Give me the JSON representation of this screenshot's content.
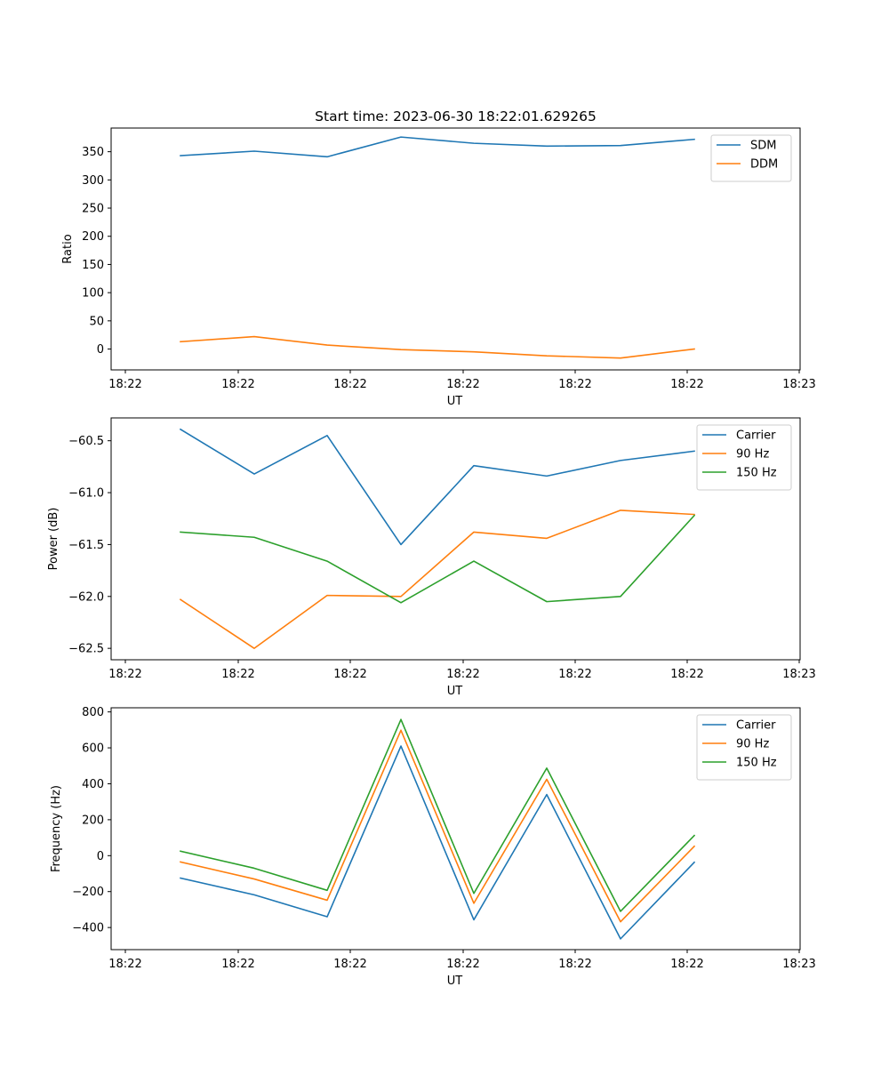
{
  "chart_data": [
    {
      "type": "line",
      "title": "Start time: 2023-06-30 18:22:01.629265",
      "xlabel": "UT",
      "ylabel": "Ratio",
      "x_tick_labels": [
        "18:22",
        "18:22",
        "18:22",
        "18:22",
        "18:22",
        "18:22",
        "18:23"
      ],
      "ylim": [
        -37,
        392
      ],
      "yticks": [
        0,
        50,
        100,
        150,
        200,
        250,
        300,
        350
      ],
      "legend_position": "upper-right",
      "grid": false,
      "series": [
        {
          "name": "SDM",
          "color": "#1f77b4",
          "values": [
            343,
            351,
            341,
            376,
            365,
            360,
            361,
            372
          ]
        },
        {
          "name": "DDM",
          "color": "#ff7f0e",
          "values": [
            13,
            22,
            7,
            -1,
            -5,
            -12,
            -16,
            0
          ]
        }
      ]
    },
    {
      "type": "line",
      "title": "",
      "xlabel": "UT",
      "ylabel": "Power (dB)",
      "x_tick_labels": [
        "18:22",
        "18:22",
        "18:22",
        "18:22",
        "18:22",
        "18:22",
        "18:23"
      ],
      "ylim": [
        -62.61,
        -60.28
      ],
      "yticks": [
        -62.5,
        -62.0,
        -61.5,
        -61.0,
        -60.5
      ],
      "ytick_labels": [
        "−62.5",
        "−62.0",
        "−61.5",
        "−61.0",
        "−60.5"
      ],
      "legend_position": "upper-right",
      "grid": false,
      "series": [
        {
          "name": "Carrier",
          "color": "#1f77b4",
          "values": [
            -60.39,
            -60.82,
            -60.45,
            -61.5,
            -60.74,
            -60.84,
            -60.69,
            -60.6
          ]
        },
        {
          "name": "90 Hz",
          "color": "#ff7f0e",
          "values": [
            -62.03,
            -62.5,
            -61.99,
            -62.0,
            -61.38,
            -61.44,
            -61.17,
            -61.21
          ]
        },
        {
          "name": "150 Hz",
          "color": "#2ca02c",
          "values": [
            -61.38,
            -61.43,
            -61.66,
            -62.06,
            -61.66,
            -62.05,
            -62.0,
            -61.22
          ]
        }
      ]
    },
    {
      "type": "line",
      "title": "",
      "xlabel": "UT",
      "ylabel": "Frequency (Hz)",
      "x_tick_labels": [
        "18:22",
        "18:22",
        "18:22",
        "18:22",
        "18:22",
        "18:22",
        "18:23"
      ],
      "ylim": [
        -523,
        823
      ],
      "yticks": [
        -400,
        -200,
        0,
        200,
        400,
        600,
        800
      ],
      "ytick_labels": [
        "−400",
        "−200",
        "0",
        "200",
        "400",
        "600",
        "800"
      ],
      "legend_position": "upper-right",
      "grid": false,
      "series": [
        {
          "name": "Carrier",
          "color": "#1f77b4",
          "values": [
            -125,
            -218,
            -340,
            610,
            -357,
            340,
            -463,
            -37
          ]
        },
        {
          "name": "90 Hz",
          "color": "#ff7f0e",
          "values": [
            -35,
            -130,
            -248,
            698,
            -265,
            425,
            -368,
            52
          ]
        },
        {
          "name": "150 Hz",
          "color": "#2ca02c",
          "values": [
            25,
            -70,
            -193,
            758,
            -210,
            487,
            -310,
            112
          ]
        }
      ]
    }
  ]
}
